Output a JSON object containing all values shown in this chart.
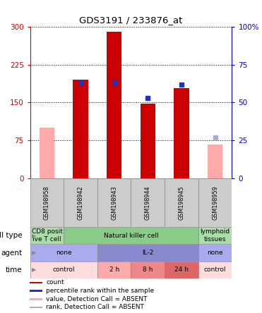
{
  "title": "GDS3191 / 233876_at",
  "samples": [
    "GSM198958",
    "GSM198942",
    "GSM198943",
    "GSM198944",
    "GSM198945",
    "GSM198959"
  ],
  "count_values": [
    null,
    195,
    290,
    148,
    178,
    null
  ],
  "percentile_values": [
    null,
    63,
    63,
    53,
    62,
    null
  ],
  "absent_count_values": [
    100,
    null,
    null,
    null,
    null,
    67
  ],
  "absent_rank_values": [
    null,
    null,
    null,
    null,
    null,
    27
  ],
  "ylim_left": [
    0,
    300
  ],
  "ylim_right": [
    0,
    100
  ],
  "yticks_left": [
    0,
    75,
    150,
    225,
    300
  ],
  "yticks_right": [
    0,
    25,
    50,
    75,
    100
  ],
  "ytick_right_labels": [
    "0",
    "25",
    "50",
    "75",
    "100%"
  ],
  "bar_color_count": "#cc0000",
  "bar_color_percentile": "#2233bb",
  "bar_color_absent_count": "#ffaaaa",
  "bar_color_absent_rank": "#aaaacc",
  "left_axis_color": "#cc0000",
  "right_axis_color": "#0000cc",
  "bg_color": "#ffffff",
  "plot_bg": "#ffffff",
  "sample_cell_color": "#cccccc",
  "cell_type_row": {
    "label": "cell type",
    "cells": [
      {
        "text": "CD8 posit\nive T cell",
        "colspan": 1,
        "color": "#aaddaa"
      },
      {
        "text": "Natural killer cell",
        "colspan": 4,
        "color": "#88cc88"
      },
      {
        "text": "lymphoid\ntissues",
        "colspan": 1,
        "color": "#aaddaa"
      }
    ]
  },
  "agent_row": {
    "label": "agent",
    "cells": [
      {
        "text": "none",
        "colspan": 2,
        "color": "#aaaaee"
      },
      {
        "text": "IL-2",
        "colspan": 3,
        "color": "#8888cc"
      },
      {
        "text": "none",
        "colspan": 1,
        "color": "#aaaaee"
      }
    ]
  },
  "time_row": {
    "label": "time",
    "cells": [
      {
        "text": "control",
        "colspan": 2,
        "color": "#ffdddd"
      },
      {
        "text": "2 h",
        "colspan": 1,
        "color": "#ffaaaa"
      },
      {
        "text": "8 h",
        "colspan": 1,
        "color": "#ee8888"
      },
      {
        "text": "24 h",
        "colspan": 1,
        "color": "#dd6666"
      },
      {
        "text": "control",
        "colspan": 1,
        "color": "#ffdddd"
      }
    ]
  },
  "legend_items": [
    {
      "color": "#cc0000",
      "label": "count"
    },
    {
      "color": "#2233bb",
      "label": "percentile rank within the sample"
    },
    {
      "color": "#ffaaaa",
      "label": "value, Detection Call = ABSENT"
    },
    {
      "color": "#aaaacc",
      "label": "rank, Detection Call = ABSENT"
    }
  ]
}
